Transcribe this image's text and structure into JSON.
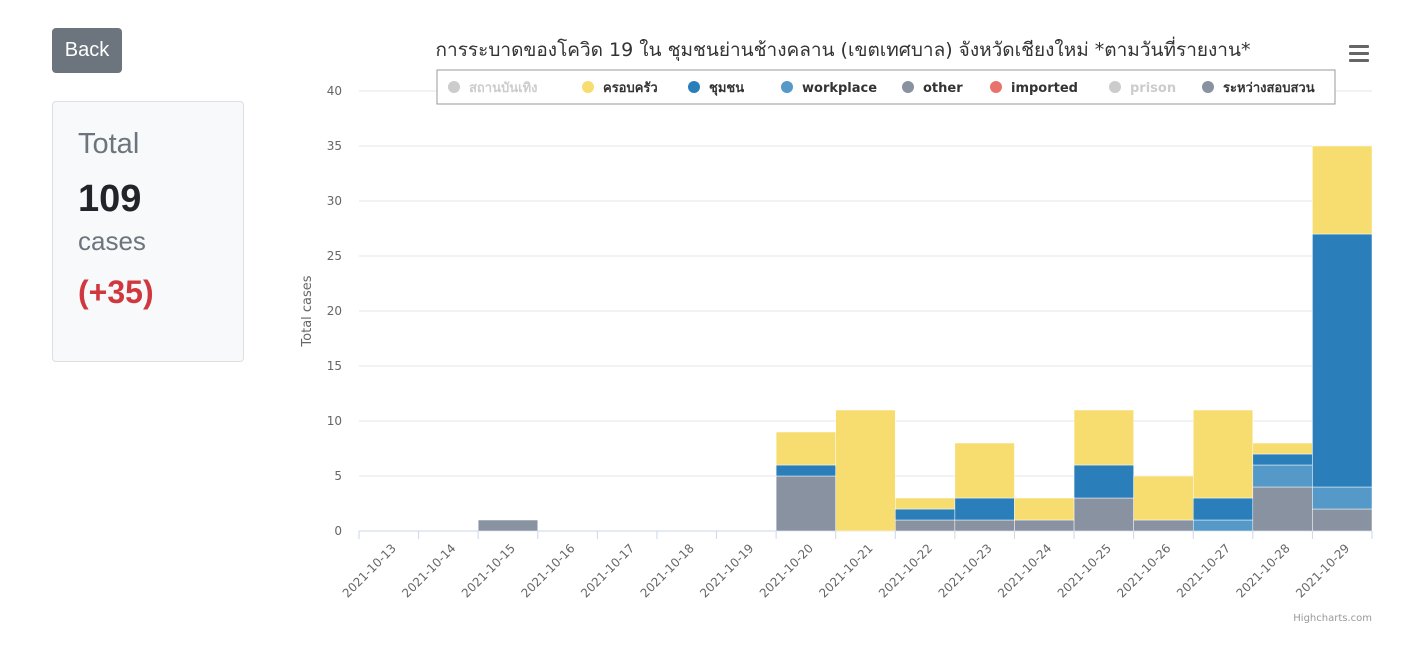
{
  "back_button": {
    "label": "Back"
  },
  "total_card": {
    "label": "Total",
    "value": "109",
    "unit": "cases",
    "delta": "(+35)"
  },
  "menu": {
    "icon": "hamburger-menu-icon"
  },
  "credit": "Highcharts.com",
  "chart_data": {
    "type": "bar",
    "stacked": true,
    "title": "การระบาดของโควิด 19 ใน ชุมชนย่านช้างคลาน (เขตเทศบาล) จังหวัดเชียงใหม่ *ตามวันที่รายงาน*",
    "xlabel": "",
    "ylabel": "Total cases",
    "ylim": [
      0,
      40
    ],
    "yticks": [
      0,
      5,
      10,
      15,
      20,
      25,
      30,
      35,
      40
    ],
    "grid": true,
    "legend_position": "top",
    "categories": [
      "2021-10-13",
      "2021-10-14",
      "2021-10-15",
      "2021-10-16",
      "2021-10-17",
      "2021-10-18",
      "2021-10-19",
      "2021-10-20",
      "2021-10-21",
      "2021-10-22",
      "2021-10-23",
      "2021-10-24",
      "2021-10-25",
      "2021-10-26",
      "2021-10-27",
      "2021-10-28",
      "2021-10-29"
    ],
    "series": [
      {
        "name": "สถานบันเทิง",
        "color": "#c8c8c8",
        "hidden": true,
        "values": [
          0,
          0,
          0,
          0,
          0,
          0,
          0,
          0,
          0,
          0,
          0,
          0,
          0,
          0,
          0,
          0,
          0
        ]
      },
      {
        "name": "ครอบครัว",
        "color": "#f7dc6f",
        "hidden": false,
        "values": [
          0,
          0,
          0,
          0,
          0,
          0,
          0,
          3,
          11,
          1,
          5,
          2,
          5,
          4,
          8,
          1,
          8
        ]
      },
      {
        "name": "ชุมชน",
        "color": "#2a7fba",
        "hidden": false,
        "values": [
          0,
          0,
          0,
          0,
          0,
          0,
          0,
          1,
          0,
          1,
          2,
          0,
          3,
          0,
          2,
          1,
          23
        ]
      },
      {
        "name": "workplace",
        "color": "#5499c7",
        "hidden": false,
        "values": [
          0,
          0,
          0,
          0,
          0,
          0,
          0,
          0,
          0,
          0,
          0,
          0,
          0,
          0,
          1,
          2,
          2
        ]
      },
      {
        "name": "other",
        "color": "#8892a0",
        "hidden": false,
        "values": [
          0,
          0,
          1,
          0,
          0,
          0,
          0,
          5,
          0,
          1,
          1,
          1,
          3,
          1,
          0,
          4,
          2
        ]
      },
      {
        "name": "imported",
        "color": "#e8736c",
        "hidden": false,
        "values": [
          0,
          0,
          0,
          0,
          0,
          0,
          0,
          0,
          0,
          0,
          0,
          0,
          0,
          0,
          0,
          0,
          0
        ]
      },
      {
        "name": "prison",
        "color": "#c8c8c8",
        "hidden": true,
        "values": [
          0,
          0,
          0,
          0,
          0,
          0,
          0,
          0,
          0,
          0,
          0,
          0,
          0,
          0,
          0,
          0,
          0
        ]
      },
      {
        "name": "ระหว่างสอบสวน",
        "color": "#8892a0",
        "hidden": false,
        "values": [
          0,
          0,
          0,
          0,
          0,
          0,
          0,
          0,
          0,
          0,
          0,
          0,
          0,
          0,
          0,
          0,
          0
        ]
      }
    ]
  }
}
